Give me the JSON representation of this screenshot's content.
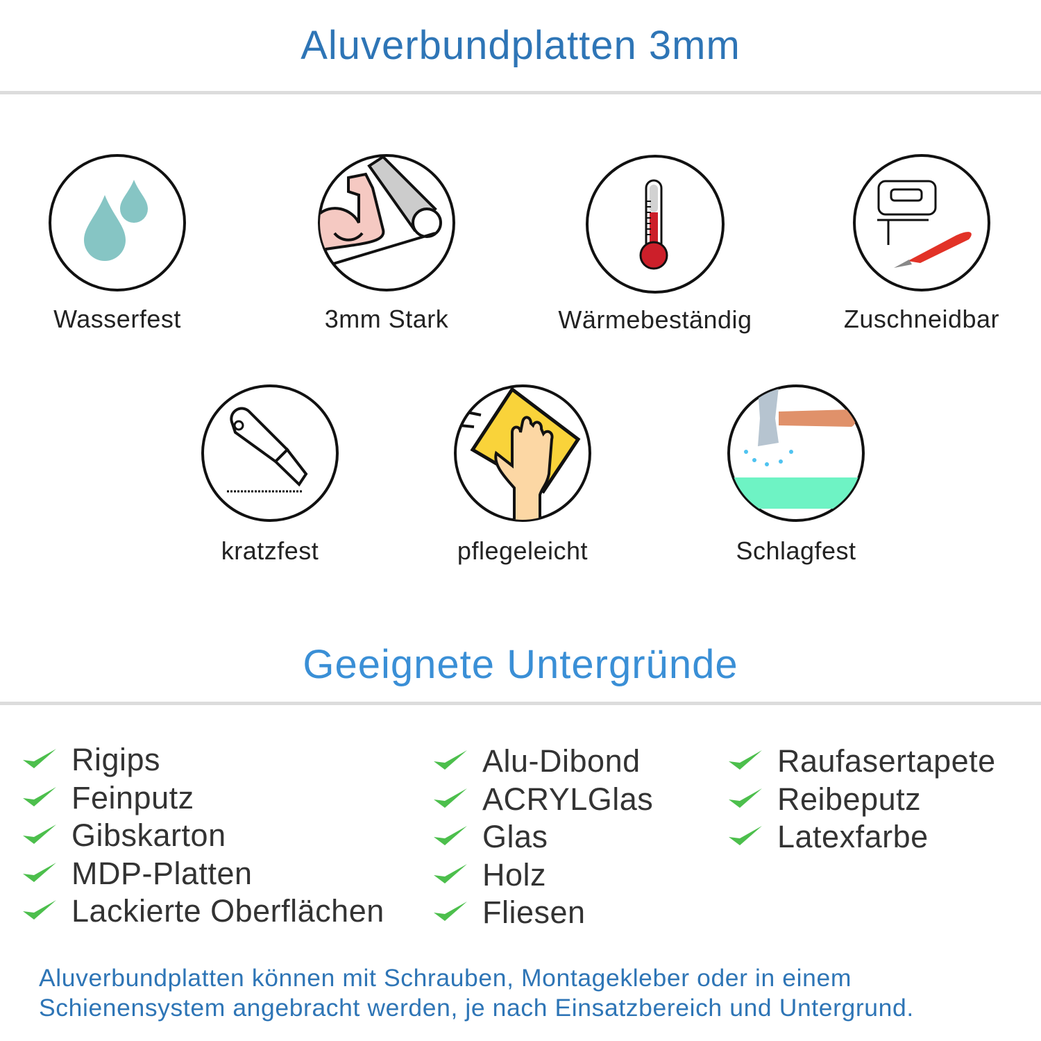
{
  "header": {
    "title": "Aluverbundplatten 3mm"
  },
  "features": [
    {
      "label": "Wasserfest",
      "icon": "water-drops-icon"
    },
    {
      "label": "3mm Stark",
      "icon": "strong-arm-icon"
    },
    {
      "label": "Wärmebeständig",
      "icon": "thermometer-icon"
    },
    {
      "label": "Zuschneidbar",
      "icon": "jigsaw-icon"
    },
    {
      "label": "kratzfest",
      "icon": "cutter-knife-icon"
    },
    {
      "label": "pflegeleicht",
      "icon": "cleaning-cloth-icon"
    },
    {
      "label": "Schlagfest",
      "icon": "hammer-icon"
    }
  ],
  "surfaces": {
    "title": "Geeignete Untergründe",
    "columns": [
      [
        "Rigips",
        "Feinputz",
        "Gibskarton",
        "MDP-Platten",
        "Lackierte Oberflächen"
      ],
      [
        "Alu-Dibond",
        "ACRYLGlas",
        "Glas",
        "Holz",
        "Fliesen"
      ],
      [
        "Raufasertapete",
        "Reibeputz",
        "Latexfarbe"
      ]
    ]
  },
  "footer": {
    "line1": "Aluverbundplatten können mit Schrauben, Montagekleber oder in einem",
    "line2": "Schienensystem angebracht werden, je nach Einsatzbereich und Untergrund."
  },
  "colors": {
    "title": "#2e75b6",
    "subtitle": "#3a8fd6",
    "check": "#4cbf4c",
    "text": "#333333",
    "divider": "#dcdcdc"
  }
}
